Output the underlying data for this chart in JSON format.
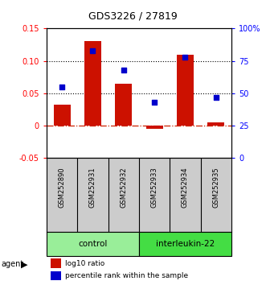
{
  "title": "GDS3226 / 27819",
  "samples": [
    "GSM252890",
    "GSM252931",
    "GSM252932",
    "GSM252933",
    "GSM252934",
    "GSM252935"
  ],
  "log10_ratio": [
    0.032,
    0.13,
    0.065,
    -0.005,
    0.11,
    0.005
  ],
  "percentile_rank": [
    55,
    83,
    68,
    43,
    78,
    47
  ],
  "groups": [
    {
      "label": "control",
      "samples": [
        0,
        1,
        2
      ],
      "color": "#99ee99"
    },
    {
      "label": "interleukin-22",
      "samples": [
        3,
        4,
        5
      ],
      "color": "#44dd44"
    }
  ],
  "left_ylim": [
    -0.05,
    0.15
  ],
  "right_ylim": [
    0,
    100
  ],
  "left_yticks": [
    -0.05,
    0.0,
    0.05,
    0.1,
    0.15
  ],
  "right_yticks": [
    0,
    25,
    50,
    75,
    100
  ],
  "left_yticklabels": [
    "-0.05",
    "0",
    "0.05",
    "0.10",
    "0.15"
  ],
  "right_yticklabels": [
    "0",
    "25",
    "50",
    "75",
    "100%"
  ],
  "hlines": [
    0.05,
    0.1
  ],
  "bar_color": "#cc1100",
  "point_color": "#0000cc",
  "zero_line_color": "#cc2200",
  "grid_color": "#000000",
  "bg_color": "#ffffff",
  "sample_bg": "#cccccc",
  "legend_log10": "log10 ratio",
  "legend_pct": "percentile rank within the sample",
  "agent_label": "agent"
}
